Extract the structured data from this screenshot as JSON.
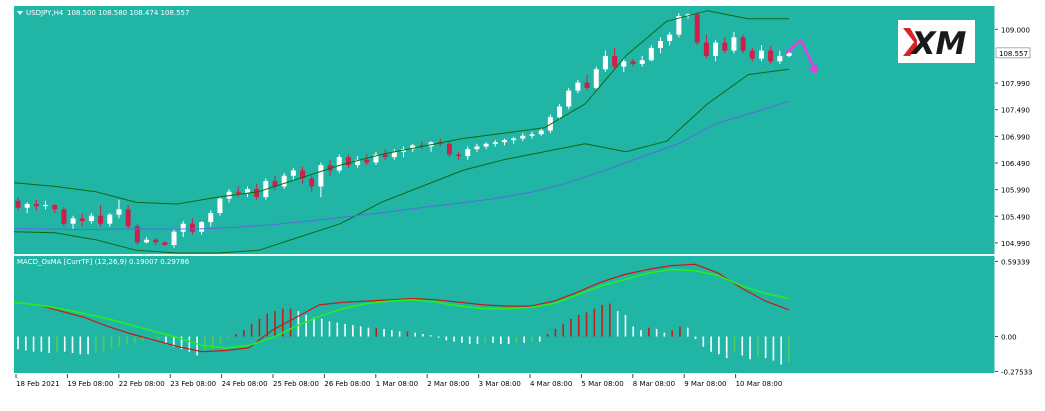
{
  "chart_data": [
    {
      "type": "candlestick",
      "title": "USDJPY,H4  108.500 108.580 108.474 108.557",
      "symbol_label": "USDJPY,H4",
      "ohlc_label": "108.500 108.580 108.474 108.557",
      "current_price_label": "108.557",
      "ylim": [
        104.8,
        109.4
      ],
      "y_ticks": [
        "109.000",
        "108.557",
        "107.990",
        "107.490",
        "106.990",
        "106.490",
        "105.990",
        "105.490",
        "104.990"
      ],
      "x_ticks": [
        "18 Feb 2021",
        "19 Feb 08:00",
        "22 Feb 08:00",
        "23 Feb 08:00",
        "24 Feb 08:00",
        "25 Feb 08:00",
        "26 Feb 08:00",
        "1 Mar 08:00",
        "2 Mar 08:00",
        "3 Mar 08:00",
        "4 Mar 08:00",
        "5 Mar 08:00",
        "8 Mar 08:00",
        "9 Mar 08:00",
        "10 Mar 08:00"
      ],
      "candles": [
        [
          105.78,
          105.85,
          105.6,
          105.65
        ],
        [
          105.65,
          105.75,
          105.55,
          105.72
        ],
        [
          105.72,
          105.8,
          105.6,
          105.68
        ],
        [
          105.68,
          105.78,
          105.62,
          105.7
        ],
        [
          105.7,
          105.72,
          105.55,
          105.62
        ],
        [
          105.62,
          105.66,
          105.3,
          105.35
        ],
        [
          105.35,
          105.5,
          105.25,
          105.45
        ],
        [
          105.45,
          105.55,
          105.3,
          105.4
        ],
        [
          105.4,
          105.55,
          105.35,
          105.5
        ],
        [
          105.5,
          105.7,
          105.3,
          105.35
        ],
        [
          105.35,
          105.55,
          105.3,
          105.52
        ],
        [
          105.52,
          105.8,
          105.45,
          105.62
        ],
        [
          105.62,
          105.7,
          105.25,
          105.3
        ],
        [
          105.3,
          105.35,
          104.95,
          105.0
        ],
        [
          105.0,
          105.1,
          104.98,
          105.05
        ],
        [
          105.05,
          105.08,
          104.95,
          105.0
        ],
        [
          105.0,
          105.02,
          104.93,
          104.95
        ],
        [
          104.95,
          105.25,
          104.9,
          105.2
        ],
        [
          105.2,
          105.4,
          105.1,
          105.35
        ],
        [
          105.35,
          105.45,
          105.15,
          105.2
        ],
        [
          105.2,
          105.4,
          105.15,
          105.38
        ],
        [
          105.38,
          105.6,
          105.3,
          105.55
        ],
        [
          105.55,
          105.85,
          105.5,
          105.82
        ],
        [
          105.82,
          106.0,
          105.75,
          105.95
        ],
        [
          105.95,
          106.05,
          105.85,
          105.92
        ],
        [
          105.92,
          106.05,
          105.85,
          106.0
        ],
        [
          106.0,
          106.1,
          105.8,
          105.85
        ],
        [
          105.85,
          106.2,
          105.8,
          106.15
        ],
        [
          106.15,
          106.25,
          105.98,
          106.05
        ],
        [
          106.05,
          106.3,
          106.0,
          106.25
        ],
        [
          106.25,
          106.4,
          106.15,
          106.35
        ],
        [
          106.35,
          106.42,
          106.1,
          106.2
        ],
        [
          106.2,
          106.25,
          105.95,
          106.05
        ],
        [
          106.05,
          106.5,
          105.85,
          106.45
        ],
        [
          106.45,
          106.55,
          106.25,
          106.35
        ],
        [
          106.35,
          106.65,
          106.3,
          106.6
        ],
        [
          106.6,
          106.65,
          106.4,
          106.45
        ],
        [
          106.45,
          106.62,
          106.4,
          106.55
        ],
        [
          106.55,
          106.65,
          106.45,
          106.5
        ],
        [
          106.5,
          106.7,
          106.45,
          106.65
        ],
        [
          106.65,
          106.75,
          106.55,
          106.6
        ],
        [
          106.6,
          106.75,
          106.55,
          106.7
        ],
        [
          106.7,
          106.8,
          106.6,
          106.75
        ],
        [
          106.75,
          106.85,
          106.7,
          106.82
        ],
        [
          106.82,
          106.9,
          106.75,
          106.8
        ],
        [
          106.8,
          106.9,
          106.7,
          106.88
        ],
        [
          106.88,
          106.95,
          106.8,
          106.85
        ],
        [
          106.85,
          106.9,
          106.6,
          106.65
        ],
        [
          106.65,
          106.7,
          106.55,
          106.62
        ],
        [
          106.62,
          106.8,
          106.55,
          106.75
        ],
        [
          106.75,
          106.85,
          106.7,
          106.8
        ],
        [
          106.8,
          106.88,
          106.75,
          106.85
        ],
        [
          106.85,
          106.92,
          106.8,
          106.88
        ],
        [
          106.88,
          106.95,
          106.82,
          106.92
        ],
        [
          106.92,
          106.98,
          106.85,
          106.95
        ],
        [
          106.95,
          107.05,
          106.9,
          107.0
        ],
        [
          107.0,
          107.08,
          106.95,
          107.03
        ],
        [
          107.03,
          107.15,
          107.0,
          107.1
        ],
        [
          107.1,
          107.4,
          107.05,
          107.35
        ],
        [
          107.35,
          107.6,
          107.3,
          107.55
        ],
        [
          107.55,
          107.9,
          107.5,
          107.85
        ],
        [
          107.85,
          108.05,
          107.8,
          108.0
        ],
        [
          108.0,
          108.15,
          107.85,
          107.9
        ],
        [
          107.9,
          108.3,
          107.88,
          108.25
        ],
        [
          108.25,
          108.6,
          108.2,
          108.5
        ],
        [
          108.5,
          108.65,
          108.25,
          108.3
        ],
        [
          108.3,
          108.45,
          108.2,
          108.4
        ],
        [
          108.4,
          108.45,
          108.3,
          108.35
        ],
        [
          108.35,
          108.5,
          108.3,
          108.42
        ],
        [
          108.42,
          108.7,
          108.4,
          108.65
        ],
        [
          108.65,
          108.85,
          108.55,
          108.78
        ],
        [
          108.78,
          108.95,
          108.7,
          108.9
        ],
        [
          108.9,
          109.3,
          108.85,
          109.25
        ],
        [
          109.25,
          109.3,
          109.2,
          109.28
        ],
        [
          109.28,
          109.32,
          108.7,
          108.75
        ],
        [
          108.75,
          108.9,
          108.45,
          108.5
        ],
        [
          108.5,
          108.8,
          108.4,
          108.75
        ],
        [
          108.75,
          108.85,
          108.55,
          108.6
        ],
        [
          108.6,
          108.95,
          108.55,
          108.85
        ],
        [
          108.85,
          108.9,
          108.55,
          108.6
        ],
        [
          108.6,
          108.65,
          108.4,
          108.45
        ],
        [
          108.45,
          108.7,
          108.4,
          108.6
        ],
        [
          108.6,
          108.68,
          108.35,
          108.4
        ],
        [
          108.4,
          108.6,
          108.35,
          108.5
        ],
        [
          108.5,
          108.58,
          108.474,
          108.557
        ]
      ],
      "bollinger_upper": [
        106.12,
        106.05,
        105.95,
        105.75,
        105.72,
        105.85,
        105.95,
        106.2,
        106.45,
        106.65,
        106.8,
        106.95,
        107.05,
        107.15,
        107.6,
        108.5,
        109.15,
        109.35,
        109.2,
        109.2
      ],
      "bollinger_lower": [
        105.2,
        105.18,
        105.05,
        104.85,
        104.8,
        104.8,
        104.85,
        105.1,
        105.35,
        105.75,
        106.05,
        106.35,
        106.55,
        106.7,
        106.85,
        106.7,
        106.9,
        107.6,
        108.15,
        108.25
      ],
      "moving_average": [
        105.26,
        105.25,
        105.24,
        105.25,
        105.25,
        105.25,
        105.28,
        105.33,
        105.4,
        105.48,
        105.56,
        105.65,
        105.73,
        105.82,
        105.94,
        106.12,
        106.35,
        106.6,
        106.85,
        107.22,
        107.43,
        107.65
      ],
      "forecast_arrow": [
        108.55,
        108.8,
        108.2
      ]
    },
    {
      "type": "macd",
      "title": "MACD_OsMA [CurrTF] (12,26,9) 0.19007 0.29786",
      "label": "MACD_OsMA [CurrTF] (12,26,9) 0.19007 0.29786",
      "ylim": [
        -0.28,
        0.62
      ],
      "y_ticks": [
        "0.59339",
        "0.00",
        "-0.27533"
      ],
      "histogram": [
        -0.1,
        -0.11,
        -0.12,
        -0.12,
        -0.13,
        -0.12,
        -0.12,
        -0.13,
        -0.14,
        -0.14,
        -0.13,
        -0.12,
        -0.1,
        -0.08,
        -0.06,
        -0.05,
        -0.04,
        -0.03,
        -0.02,
        -0.05,
        -0.08,
        -0.1,
        -0.12,
        -0.15,
        -0.12,
        -0.1,
        -0.06,
        -0.02,
        0.02,
        0.05,
        0.1,
        0.14,
        0.18,
        0.2,
        0.22,
        0.22,
        0.2,
        0.17,
        0.15,
        0.14,
        0.12,
        0.11,
        0.1,
        0.09,
        0.08,
        0.07,
        0.07,
        0.06,
        0.05,
        0.04,
        0.04,
        0.03,
        0.02,
        0.01,
        -0.01,
        -0.03,
        -0.04,
        -0.05,
        -0.06,
        -0.06,
        -0.05,
        -0.05,
        -0.06,
        -0.06,
        -0.05,
        -0.05,
        -0.04,
        -0.04,
        0.02,
        0.06,
        0.1,
        0.14,
        0.17,
        0.19,
        0.22,
        0.25,
        0.26,
        0.2,
        0.17,
        0.08,
        0.05,
        0.07,
        0.06,
        0.03,
        0.05,
        0.08,
        0.07,
        -0.02,
        -0.08,
        -0.12,
        -0.14,
        -0.17,
        -0.12,
        -0.15,
        -0.18,
        -0.16,
        -0.17,
        -0.19,
        -0.22,
        -0.2
      ],
      "macd_line": [
        0.27,
        0.25,
        0.2,
        0.15,
        0.08,
        0.02,
        -0.03,
        -0.08,
        -0.12,
        -0.11,
        -0.09,
        0.05,
        0.15,
        0.25,
        0.27,
        0.28,
        0.29,
        0.3,
        0.29,
        0.27,
        0.25,
        0.24,
        0.24,
        0.28,
        0.35,
        0.43,
        0.49,
        0.53,
        0.56,
        0.57,
        0.5,
        0.38,
        0.28,
        0.21
      ],
      "signal_line": [
        0.27,
        0.25,
        0.22,
        0.18,
        0.14,
        0.09,
        0.04,
        -0.01,
        -0.07,
        -0.09,
        -0.07,
        -0.01,
        0.08,
        0.16,
        0.22,
        0.26,
        0.28,
        0.29,
        0.27,
        0.24,
        0.22,
        0.22,
        0.23,
        0.26,
        0.33,
        0.4,
        0.45,
        0.5,
        0.53,
        0.52,
        0.48,
        0.4,
        0.34,
        0.3
      ]
    }
  ],
  "colors": {
    "background": "#21b5a6",
    "bull_body": "#ffffff",
    "bear_body": "#ce1e4a",
    "bands": "#0c6a10",
    "moving_average": "#5a6bd8",
    "forecast_arrow": "#e83ee0",
    "macd_line": "#cc1515",
    "signal_line": "#22ee22",
    "hist_positive_up": "#c91a1a",
    "hist_positive_down": "#ffffff",
    "hist_negative_down": "#ffffff",
    "hist_negative_up": "#55cc55",
    "logo_bg": "#ffffff",
    "logo_mark": "#d8232a",
    "logo_text": "#1a1a1a"
  },
  "logo": {
    "text": "XM"
  }
}
